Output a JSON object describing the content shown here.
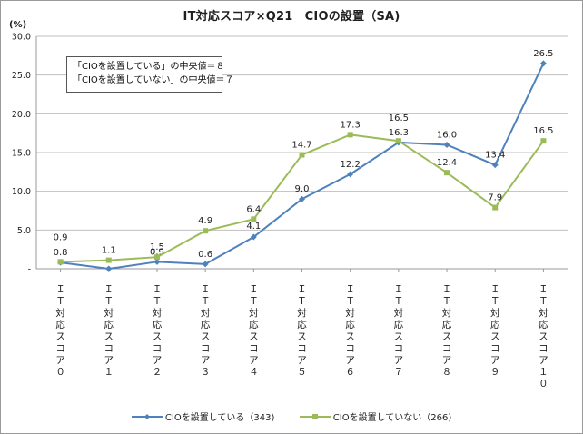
{
  "chart_data": {
    "type": "line",
    "title": "IT対応スコア×Q21　CIOの設置（SA)",
    "unit": "(%)",
    "ylim": [
      0,
      30
    ],
    "yticks": [
      "-",
      "5.0",
      "10.0",
      "15.0",
      "20.0",
      "25.0",
      "30.0"
    ],
    "grid": true,
    "categories": [
      "IT対応スコア0",
      "IT対応スコア1",
      "IT対応スコア2",
      "IT対応スコア3",
      "IT対応スコア4",
      "IT対応スコア5",
      "IT対応スコア6",
      "IT対応スコア7",
      "IT対応スコア8",
      "IT対応スコア9",
      "IT対応スコア10"
    ],
    "series": [
      {
        "name": "CIOを設置している（343)",
        "color": "#4f81bd",
        "values": [
          0.8,
          0.0,
          0.9,
          0.6,
          4.1,
          9.0,
          12.2,
          16.3,
          16.0,
          13.4,
          26.5
        ],
        "labels": [
          "0.8",
          "",
          "0.9",
          "0.6",
          "4.1",
          "9.0",
          "12.2",
          "16.3",
          "16.0",
          "13.4",
          "26.5"
        ]
      },
      {
        "name": "CIOを設置していない（266)",
        "color": "#9bbb59",
        "values": [
          0.9,
          1.1,
          1.5,
          4.9,
          6.4,
          14.7,
          17.3,
          16.5,
          12.4,
          7.9,
          16.5
        ],
        "labels": [
          "0.9",
          "1.1",
          "1.5",
          "4.9",
          "6.4",
          "14.7",
          "17.3",
          "16.5",
          "12.4",
          "7.9",
          "16.5"
        ]
      }
    ],
    "annotations": [
      "「CIOを設置している」の中央値＝８",
      "「CIOを設置していない」の中央値＝７"
    ],
    "legend_position": "bottom"
  }
}
